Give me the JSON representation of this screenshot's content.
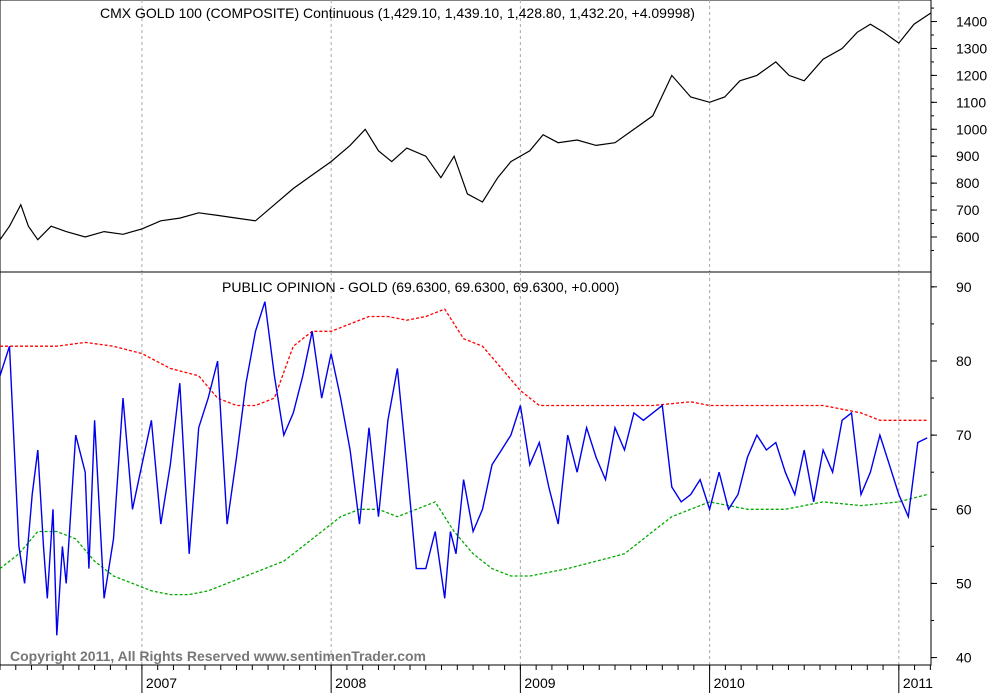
{
  "chart_data": [
    {
      "type": "line",
      "title": "CMX GOLD 100 (COMPOSITE) Continuous (1,429.10, 1,439.10, 1,428.80, 1,432.20, +4.09998)",
      "ylim": [
        470,
        1480
      ],
      "yticks": [
        600,
        700,
        800,
        900,
        1000,
        1100,
        1200,
        1300,
        1400
      ],
      "x_ticks": [
        "2007",
        "2008",
        "2009",
        "2010",
        "2011"
      ],
      "x_tick_positions": [
        2007.0,
        2008.0,
        2009.0,
        2010.0,
        2011.0
      ],
      "x_range": [
        2006.25,
        2011.17
      ],
      "series": [
        {
          "color": "#000000",
          "x": [
            2006.25,
            2006.3,
            2006.36,
            2006.4,
            2006.45,
            2006.52,
            2006.6,
            2006.7,
            2006.8,
            2006.9,
            2007.0,
            2007.1,
            2007.2,
            2007.3,
            2007.4,
            2007.5,
            2007.6,
            2007.7,
            2007.8,
            2007.9,
            2008.0,
            2008.1,
            2008.18,
            2008.25,
            2008.32,
            2008.4,
            2008.5,
            2008.58,
            2008.65,
            2008.72,
            2008.8,
            2008.88,
            2008.95,
            2009.05,
            2009.12,
            2009.2,
            2009.3,
            2009.4,
            2009.5,
            2009.6,
            2009.7,
            2009.8,
            2009.9,
            2010.0,
            2010.08,
            2010.16,
            2010.25,
            2010.35,
            2010.42,
            2010.5,
            2010.6,
            2010.7,
            2010.78,
            2010.85,
            2010.92,
            2011.0,
            2011.08,
            2011.17
          ],
          "values": [
            590,
            640,
            720,
            640,
            590,
            640,
            620,
            600,
            620,
            610,
            630,
            660,
            670,
            690,
            680,
            670,
            660,
            720,
            780,
            830,
            880,
            940,
            1000,
            920,
            880,
            930,
            900,
            820,
            900,
            760,
            730,
            820,
            880,
            920,
            980,
            950,
            960,
            940,
            950,
            1000,
            1050,
            1200,
            1120,
            1100,
            1120,
            1180,
            1200,
            1250,
            1200,
            1180,
            1260,
            1300,
            1360,
            1390,
            1360,
            1320,
            1390,
            1432
          ]
        }
      ]
    },
    {
      "type": "line",
      "title": "PUBLIC OPINION - GOLD (69.6300, 69.6300, 69.6300, +0.000)",
      "ylim": [
        39,
        92
      ],
      "yticks": [
        40,
        50,
        60,
        70,
        80,
        90
      ],
      "x_ticks": [
        "2007",
        "2008",
        "2009",
        "2010",
        "2011"
      ],
      "x_tick_positions": [
        2007.0,
        2008.0,
        2009.0,
        2010.0,
        2011.0
      ],
      "x_range": [
        2006.25,
        2011.17
      ],
      "series": [
        {
          "color": "#0000ee",
          "x": [
            2006.25,
            2006.3,
            2006.35,
            2006.38,
            2006.42,
            2006.45,
            2006.48,
            2006.5,
            2006.53,
            2006.55,
            2006.58,
            2006.6,
            2006.65,
            2006.7,
            2006.72,
            2006.75,
            2006.8,
            2006.85,
            2006.9,
            2006.95,
            2007.0,
            2007.05,
            2007.1,
            2007.15,
            2007.2,
            2007.25,
            2007.3,
            2007.35,
            2007.4,
            2007.45,
            2007.5,
            2007.55,
            2007.6,
            2007.65,
            2007.7,
            2007.75,
            2007.8,
            2007.85,
            2007.9,
            2007.95,
            2008.0,
            2008.05,
            2008.1,
            2008.15,
            2008.2,
            2008.25,
            2008.3,
            2008.35,
            2008.4,
            2008.45,
            2008.5,
            2008.55,
            2008.6,
            2008.63,
            2008.66,
            2008.7,
            2008.75,
            2008.8,
            2008.85,
            2008.9,
            2008.95,
            2009.0,
            2009.05,
            2009.1,
            2009.15,
            2009.2,
            2009.25,
            2009.3,
            2009.35,
            2009.4,
            2009.45,
            2009.5,
            2009.55,
            2009.6,
            2009.65,
            2009.7,
            2009.75,
            2009.8,
            2009.85,
            2009.9,
            2009.95,
            2010.0,
            2010.05,
            2010.1,
            2010.15,
            2010.2,
            2010.25,
            2010.3,
            2010.35,
            2010.4,
            2010.45,
            2010.5,
            2010.55,
            2010.6,
            2010.65,
            2010.7,
            2010.75,
            2010.8,
            2010.85,
            2010.9,
            2010.95,
            2011.0,
            2011.05,
            2011.1,
            2011.15
          ],
          "values": [
            78,
            82,
            55,
            50,
            62,
            68,
            55,
            48,
            60,
            43,
            55,
            50,
            70,
            65,
            52,
            72,
            48,
            56,
            75,
            60,
            66,
            72,
            58,
            66,
            77,
            54,
            71,
            75,
            80,
            58,
            67,
            77,
            84,
            88,
            78,
            70,
            73,
            78,
            84,
            75,
            81,
            75,
            68,
            58,
            71,
            59,
            72,
            79,
            66,
            52,
            52,
            57,
            48,
            57,
            54,
            64,
            57,
            60,
            66,
            68,
            70,
            74,
            66,
            69,
            63,
            58,
            70,
            65,
            71,
            67,
            64,
            71,
            68,
            73,
            72,
            73,
            74,
            63,
            61,
            62,
            64,
            60,
            65,
            60,
            62,
            67,
            70,
            68,
            69,
            65,
            62,
            68,
            61,
            68,
            65,
            72,
            73,
            62,
            65,
            70,
            66,
            62,
            59,
            69,
            69.63
          ]
        },
        {
          "color": "#ff0000",
          "x": [
            2006.25,
            2006.4,
            2006.55,
            2006.7,
            2006.85,
            2007.0,
            2007.15,
            2007.3,
            2007.4,
            2007.5,
            2007.6,
            2007.7,
            2007.8,
            2007.9,
            2008.0,
            2008.1,
            2008.2,
            2008.3,
            2008.4,
            2008.5,
            2008.6,
            2008.7,
            2008.8,
            2008.9,
            2009.0,
            2009.1,
            2009.3,
            2009.5,
            2009.7,
            2009.9,
            2010.0,
            2010.2,
            2010.4,
            2010.6,
            2010.8,
            2010.9,
            2011.0,
            2011.1,
            2011.15
          ],
          "values": [
            82,
            82,
            82,
            82.5,
            82,
            81,
            79,
            78,
            75,
            74,
            74,
            75,
            82,
            84,
            84,
            85,
            86,
            86,
            85.5,
            86,
            87,
            83,
            82,
            79,
            76,
            74,
            74,
            74,
            74,
            74.5,
            74,
            74,
            74,
            74,
            73,
            72,
            72,
            72,
            72
          ]
        },
        {
          "color": "#00aa00",
          "x": [
            2006.25,
            2006.35,
            2006.45,
            2006.55,
            2006.65,
            2006.75,
            2006.85,
            2006.95,
            2007.05,
            2007.15,
            2007.25,
            2007.35,
            2007.45,
            2007.55,
            2007.65,
            2007.75,
            2007.85,
            2007.95,
            2008.05,
            2008.15,
            2008.25,
            2008.35,
            2008.45,
            2008.55,
            2008.65,
            2008.75,
            2008.85,
            2008.95,
            2009.05,
            2009.15,
            2009.25,
            2009.4,
            2009.55,
            2009.7,
            2009.8,
            2009.9,
            2010.0,
            2010.2,
            2010.4,
            2010.6,
            2010.8,
            2011.0,
            2011.15
          ],
          "values": [
            52,
            54,
            57,
            57,
            56,
            53,
            51,
            50,
            49,
            48.5,
            48.5,
            49,
            50,
            51,
            52,
            53,
            55,
            57,
            59,
            60,
            60,
            59,
            60,
            61,
            57,
            54,
            52,
            51,
            51,
            51.5,
            52,
            53,
            54,
            57,
            59,
            60,
            61,
            60,
            60,
            61,
            60.5,
            61,
            62
          ]
        }
      ]
    }
  ],
  "copyright": "Copyright 2011, All Rights Reserved  www.sentimenTrader.com"
}
